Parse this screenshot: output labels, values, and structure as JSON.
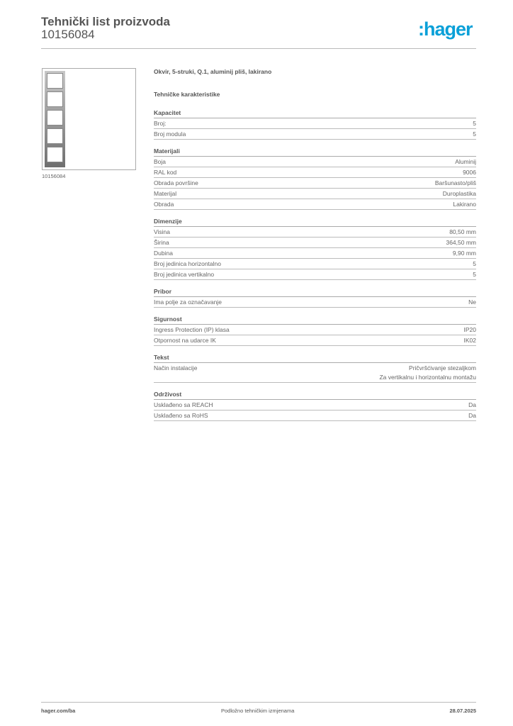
{
  "header": {
    "title": "Tehnički list proizvoda",
    "product_number": "10156084",
    "logo": ":hager",
    "logo_color": "#0aa0d8"
  },
  "image": {
    "caption": "10156084",
    "modules": 5
  },
  "main": {
    "description": "Okvir, 5-struki, Q.1, aluminij pliš, lakirano",
    "subtitle": "Tehničke karakteristike",
    "sections": [
      {
        "title": "Kapacitet",
        "rows": [
          {
            "label": "Broj:",
            "value": "5"
          },
          {
            "label": "Broj modula",
            "value": "5"
          }
        ]
      },
      {
        "title": "Materijali",
        "rows": [
          {
            "label": "Boja",
            "value": "Aluminij"
          },
          {
            "label": "RAL kod",
            "value": "9006"
          },
          {
            "label": "Obrada površine",
            "value": "Baršunasto/pliš"
          },
          {
            "label": "Materijal",
            "value": "Duroplastika"
          },
          {
            "label": "Obrada",
            "value": "Lakirano"
          }
        ]
      },
      {
        "title": "Dimenzije",
        "rows": [
          {
            "label": "Visina",
            "value": "80,50 mm"
          },
          {
            "label": "Širina",
            "value": "364,50 mm"
          },
          {
            "label": "Dubina",
            "value": "9,90 mm"
          },
          {
            "label": "Broj jedinica horizontalno",
            "value": "5"
          },
          {
            "label": "Broj jedinica vertikalno",
            "value": "5"
          }
        ]
      },
      {
        "title": "Pribor",
        "rows": [
          {
            "label": "Ima polje za označavanje",
            "value": "Ne"
          }
        ]
      },
      {
        "title": "Sigurnost",
        "rows": [
          {
            "label": "Ingress Protection (IP) klasa",
            "value": "IP20"
          },
          {
            "label": "Otpornost na udarce IK",
            "value": "IK02"
          }
        ]
      },
      {
        "title": "Tekst",
        "rows": [
          {
            "label": "Način instalacije",
            "value": "Pričvršćivanje stezaljkom\nZa vertikalnu i horizontalnu montažu"
          }
        ]
      },
      {
        "title": "Održivost",
        "rows": [
          {
            "label": "Usklađeno sa REACH",
            "value": "Da"
          },
          {
            "label": "Usklađeno sa RoHS",
            "value": "Da"
          }
        ]
      }
    ]
  },
  "footer": {
    "website": "hager.com/ba",
    "note": "Podložno tehničkim izmjenama",
    "date": "28.07.2025"
  }
}
